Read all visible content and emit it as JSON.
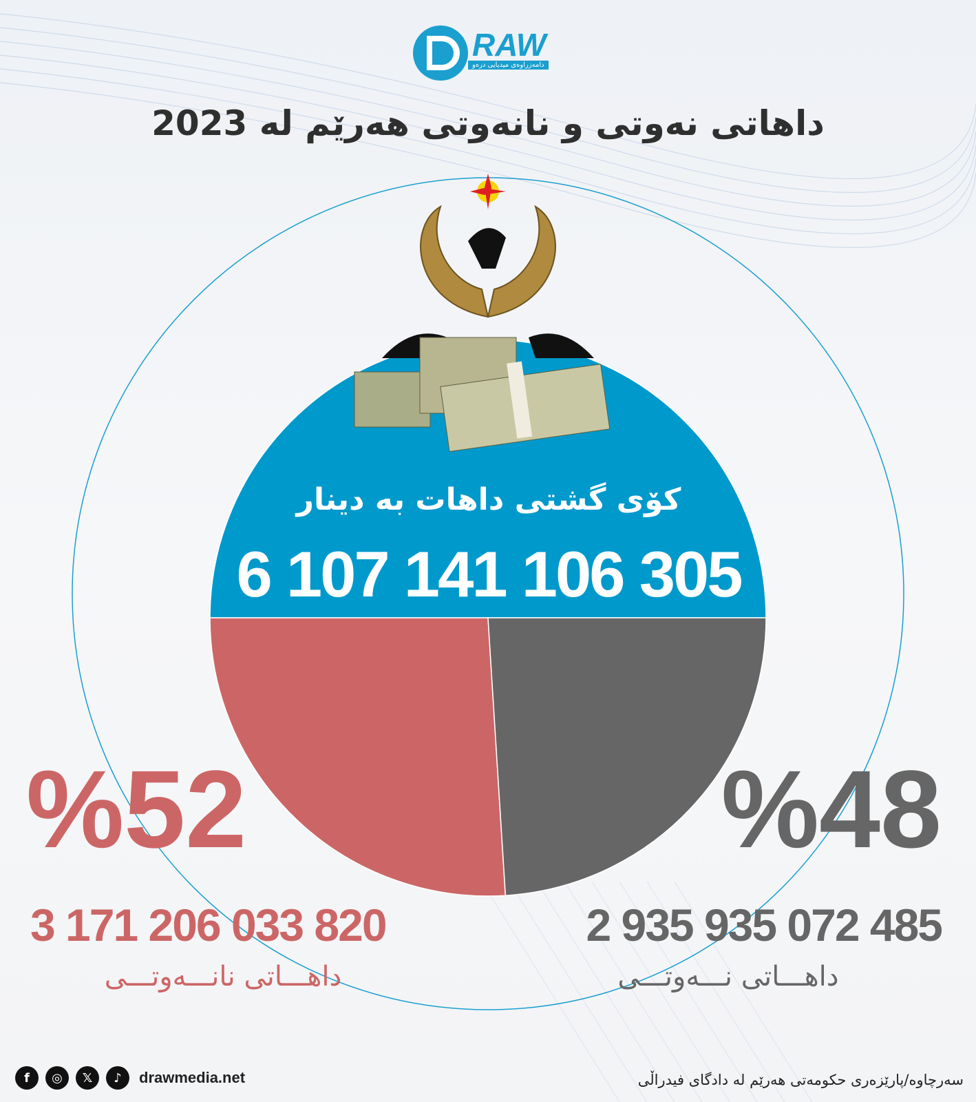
{
  "brand": {
    "logo_text": "RAW",
    "logo_letter": "D",
    "logo_tagline": "دامەزراوەی میدیایی درەو"
  },
  "title": "داهاتی نەوتی و  نانەوتی هەرێم لە 2023",
  "colors": {
    "total": "#0099cc",
    "non_oil": "#cc6666",
    "oil": "#666666",
    "ring": "#1a9fcf"
  },
  "chart_data": {
    "type": "pie",
    "total": {
      "label": "کۆی گشتی داهات بە دینار",
      "value": "6 107 141 106 305"
    },
    "slices": [
      {
        "name": "داهـــاتی نانـــەوتـــی",
        "percent": 52,
        "percent_label": "%52",
        "value": "3 171 206 033 820"
      },
      {
        "name": "داهـــاتی نـــەوتـــی",
        "percent": 48,
        "percent_label": "%48",
        "value": "2 935 935 072 485"
      }
    ]
  },
  "footer": {
    "social": [
      {
        "icon": "facebook-icon",
        "glyph": "f"
      },
      {
        "icon": "instagram-icon",
        "glyph": "◎"
      },
      {
        "icon": "x-icon",
        "glyph": "𝕏"
      },
      {
        "icon": "tiktok-icon",
        "glyph": "♪"
      }
    ],
    "website": "drawmedia.net",
    "source": "سەرچاوە/پارێزەری حکومەتی هەرێم لە دادگای فیدراڵی"
  }
}
